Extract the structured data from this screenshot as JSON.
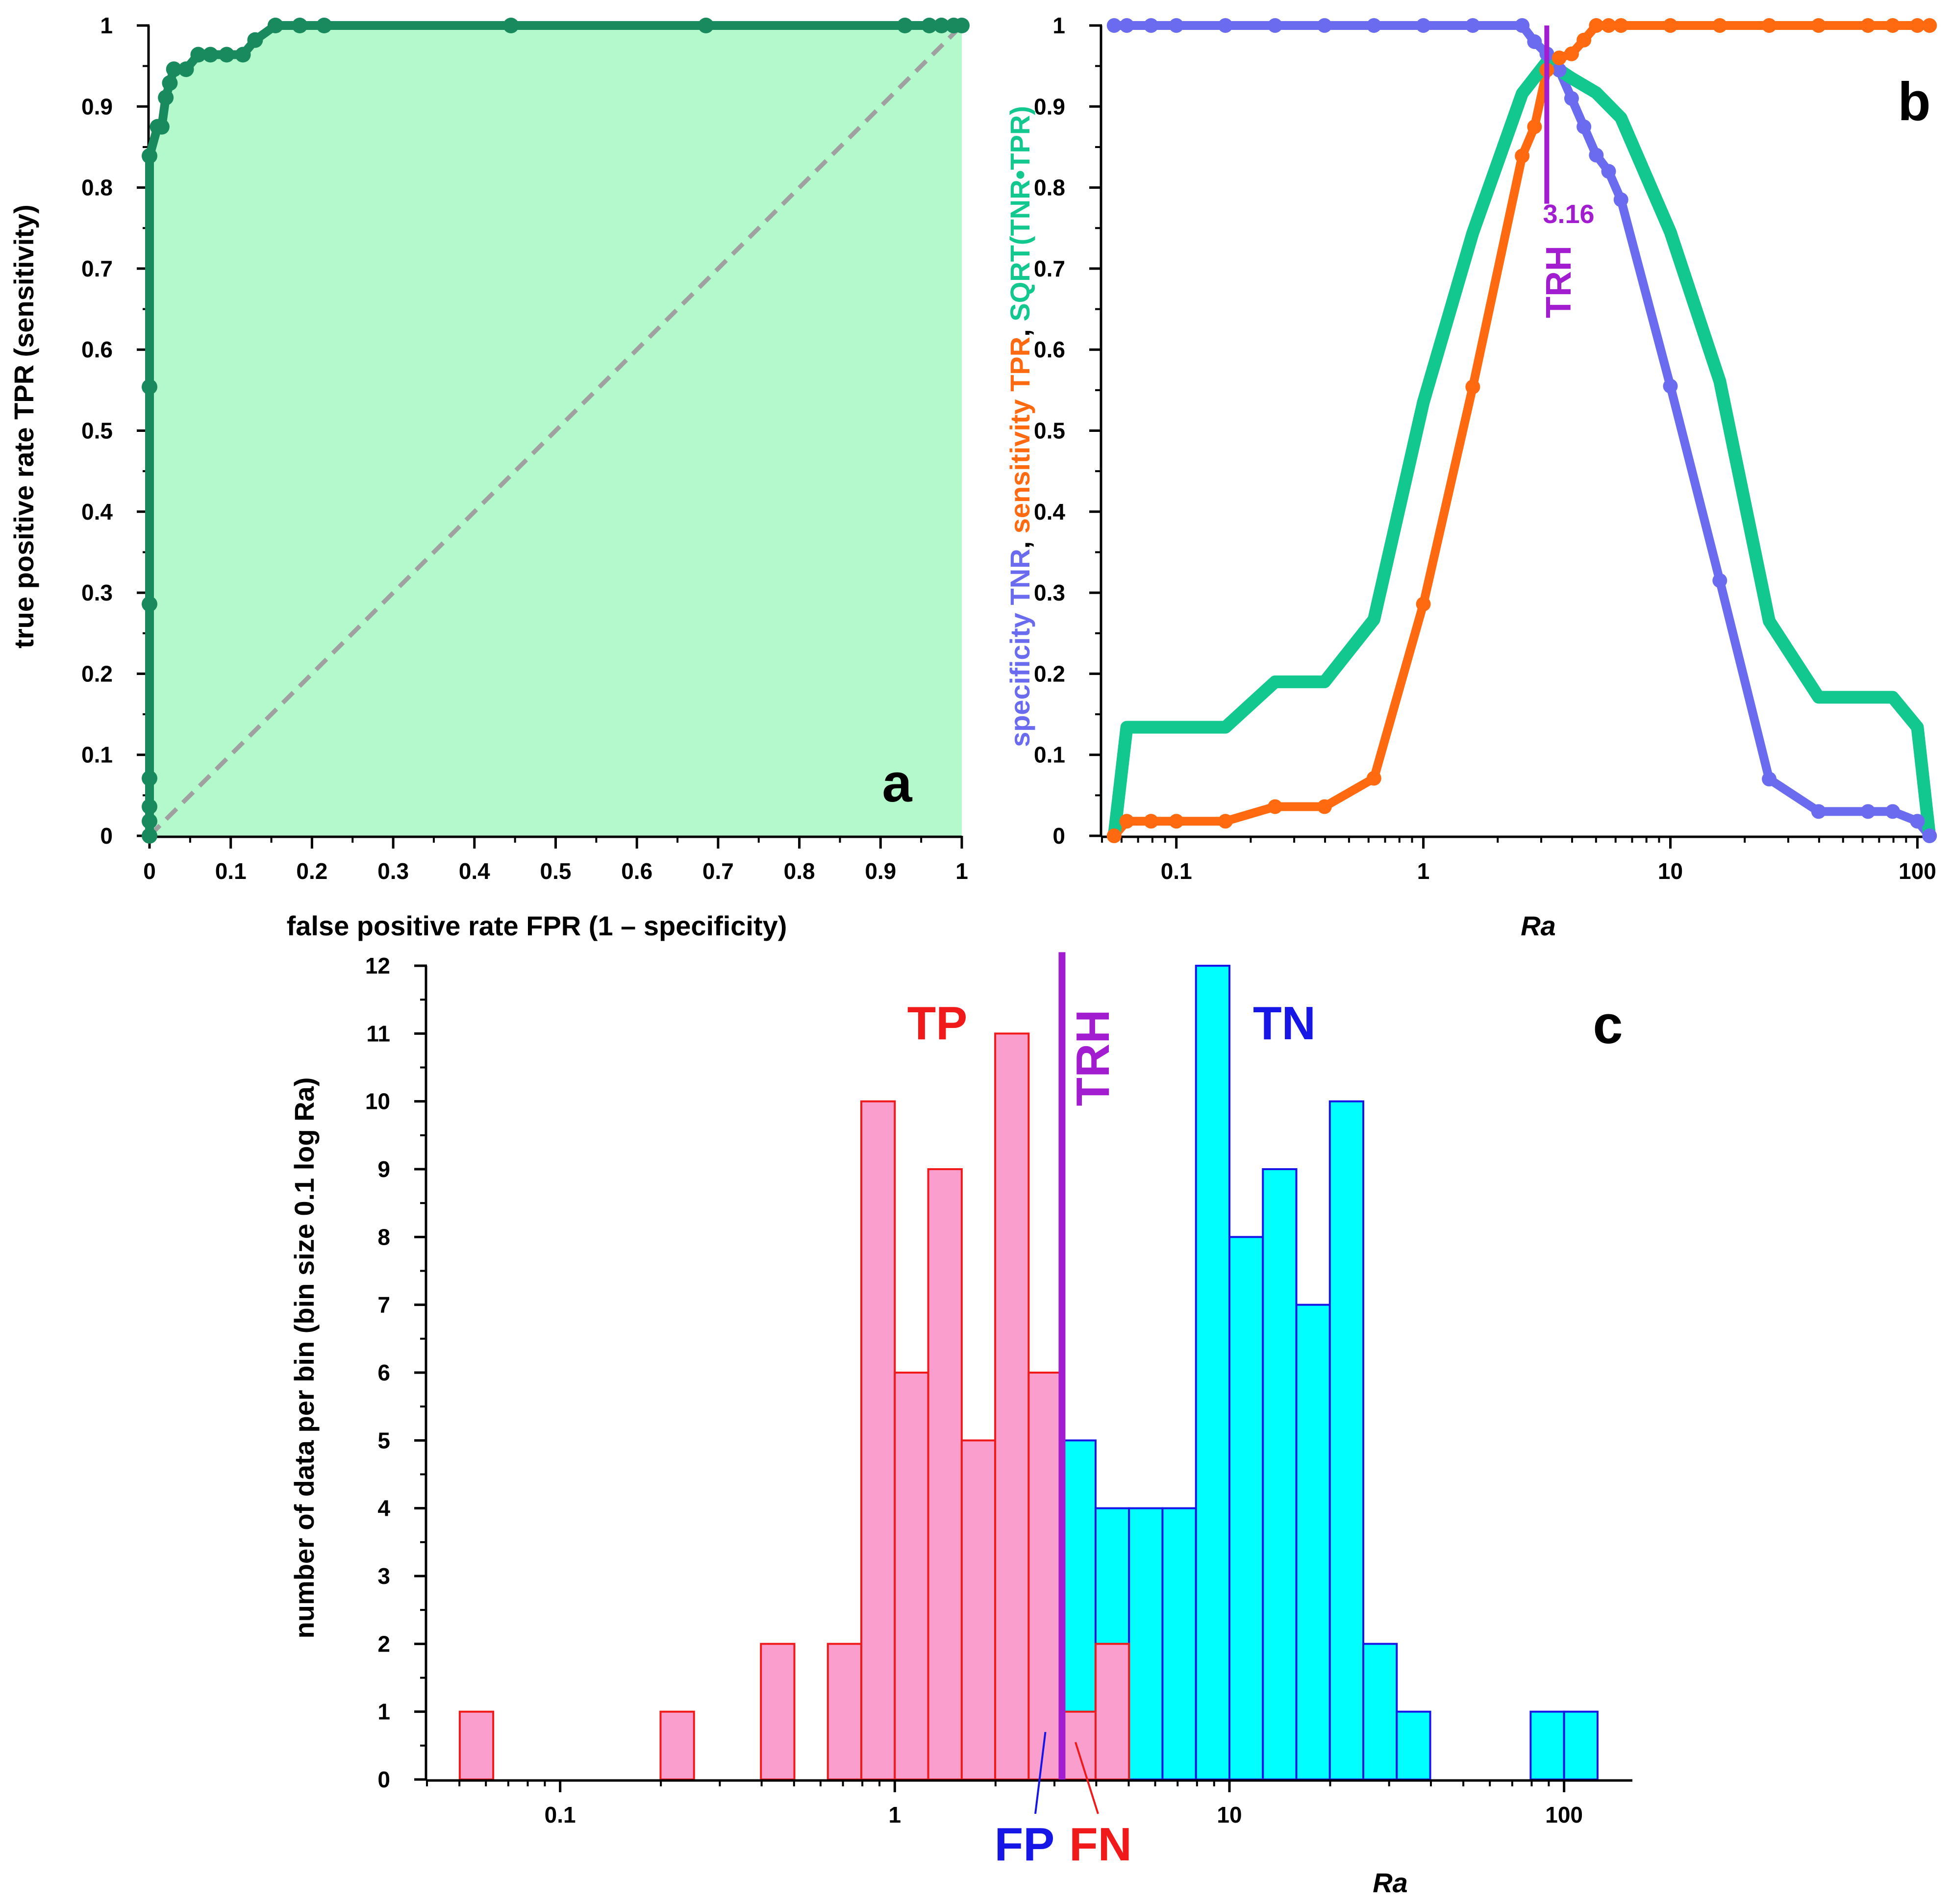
{
  "colors": {
    "roc_line": "#188a5e",
    "roc_fill": "#b3f9cb",
    "tnr": "#6b6bf0",
    "tpr": "#ff6a10",
    "sqrt": "#12c88e",
    "trh": "#a21cd0",
    "tp_fill": "#fa9fcd",
    "tp_edge": "#f01a1a",
    "tn_fill": "#00ffff",
    "tn_edge": "#1616e6",
    "fp_label": "#1616e6",
    "fn_label": "#f01a1a"
  },
  "chart_data": [
    {
      "id": "a",
      "type": "line",
      "panel_label": "a",
      "xlabel": "false positive rate FPR (1 – specificity)",
      "ylabel": "true positive rate TPR (sensitivity)",
      "xlim": [
        0,
        1
      ],
      "ylim": [
        0,
        1
      ],
      "xticks": [
        "0",
        "0.1",
        "0.2",
        "0.3",
        "0.4",
        "0.5",
        "0.6",
        "0.7",
        "0.8",
        "0.9",
        "1"
      ],
      "yticks": [
        "0",
        "0.1",
        "0.2",
        "0.3",
        "0.4",
        "0.5",
        "0.6",
        "0.7",
        "0.8",
        "0.9",
        "1"
      ],
      "diagonal": [
        [
          0,
          0
        ],
        [
          1,
          1
        ]
      ],
      "roc": [
        [
          0,
          0
        ],
        [
          0,
          0.018
        ],
        [
          0,
          0.036
        ],
        [
          0,
          0.071
        ],
        [
          0,
          0.286
        ],
        [
          0,
          0.554
        ],
        [
          0,
          0.839
        ],
        [
          0.01,
          0.875
        ],
        [
          0.015,
          0.875
        ],
        [
          0.02,
          0.911
        ],
        [
          0.025,
          0.929
        ],
        [
          0.03,
          0.946
        ],
        [
          0.045,
          0.946
        ],
        [
          0.06,
          0.964
        ],
        [
          0.075,
          0.964
        ],
        [
          0.095,
          0.964
        ],
        [
          0.115,
          0.964
        ],
        [
          0.13,
          0.982
        ],
        [
          0.155,
          1
        ],
        [
          0.185,
          1
        ],
        [
          0.215,
          1
        ],
        [
          0.445,
          1
        ],
        [
          0.685,
          1
        ],
        [
          0.93,
          1
        ],
        [
          0.96,
          1
        ],
        [
          0.975,
          1
        ],
        [
          0.99,
          1
        ],
        [
          1,
          1
        ]
      ]
    },
    {
      "id": "b",
      "type": "line",
      "panel_label": "b",
      "xlabel": "Ra",
      "ylabel_parts": [
        "specificity TNR",
        ", ",
        "sensitivity TPR",
        ", ",
        "SQRT(TNR•TPR)"
      ],
      "xscale": "log",
      "xlim": [
        0.05,
        115
      ],
      "ylim": [
        0,
        1
      ],
      "xticks": [
        "0.1",
        "1",
        "10",
        "100"
      ],
      "yticks": [
        "0",
        "0.1",
        "0.2",
        "0.3",
        "0.4",
        "0.5",
        "0.6",
        "0.7",
        "0.8",
        "0.9",
        "1"
      ],
      "threshold": {
        "label": "TRH",
        "value": 3.16,
        "value_label": "3.16"
      },
      "series": [
        {
          "name": "TNR",
          "points": [
            [
              0.056,
              1
            ],
            [
              0.063,
              1
            ],
            [
              0.079,
              1
            ],
            [
              0.1,
              1
            ],
            [
              0.158,
              1
            ],
            [
              0.251,
              1
            ],
            [
              0.398,
              1
            ],
            [
              0.631,
              1
            ],
            [
              1,
              1
            ],
            [
              1.585,
              1
            ],
            [
              2.512,
              1
            ],
            [
              2.818,
              0.98
            ],
            [
              3.162,
              0.965
            ],
            [
              3.548,
              0.945
            ],
            [
              3.981,
              0.91
            ],
            [
              4.467,
              0.875
            ],
            [
              5.012,
              0.84
            ],
            [
              5.623,
              0.82
            ],
            [
              6.31,
              0.785
            ],
            [
              10,
              0.555
            ],
            [
              15.85,
              0.315
            ],
            [
              25.12,
              0.07
            ],
            [
              39.81,
              0.03
            ],
            [
              63.1,
              0.03
            ],
            [
              79.43,
              0.03
            ],
            [
              100,
              0.018
            ],
            [
              112,
              0
            ]
          ]
        },
        {
          "name": "TPR",
          "points": [
            [
              0.056,
              0
            ],
            [
              0.063,
              0.018
            ],
            [
              0.079,
              0.018
            ],
            [
              0.1,
              0.018
            ],
            [
              0.158,
              0.018
            ],
            [
              0.251,
              0.036
            ],
            [
              0.398,
              0.036
            ],
            [
              0.631,
              0.071
            ],
            [
              1,
              0.286
            ],
            [
              1.585,
              0.554
            ],
            [
              2.512,
              0.839
            ],
            [
              2.818,
              0.875
            ],
            [
              3.162,
              0.945
            ],
            [
              3.548,
              0.96
            ],
            [
              3.981,
              0.965
            ],
            [
              4.467,
              0.982
            ],
            [
              5.012,
              1
            ],
            [
              5.623,
              1
            ],
            [
              6.31,
              1
            ],
            [
              10,
              1
            ],
            [
              15.85,
              1
            ],
            [
              25.12,
              1
            ],
            [
              39.81,
              1
            ],
            [
              63.1,
              1
            ],
            [
              79.43,
              1
            ],
            [
              100,
              1
            ],
            [
              112,
              1
            ]
          ]
        },
        {
          "name": "SQRT(TNR•TPR)",
          "points": [
            [
              0.056,
              0
            ],
            [
              0.063,
              0.134
            ],
            [
              0.079,
              0.134
            ],
            [
              0.1,
              0.134
            ],
            [
              0.158,
              0.134
            ],
            [
              0.251,
              0.19
            ],
            [
              0.398,
              0.19
            ],
            [
              0.631,
              0.267
            ],
            [
              1,
              0.535
            ],
            [
              1.585,
              0.744
            ],
            [
              2.512,
              0.916
            ],
            [
              3.162,
              0.955
            ],
            [
              3.981,
              0.935
            ],
            [
              5.012,
              0.917
            ],
            [
              6.31,
              0.886
            ],
            [
              10,
              0.745
            ],
            [
              15.85,
              0.561
            ],
            [
              25.12,
              0.265
            ],
            [
              39.81,
              0.171
            ],
            [
              63.1,
              0.171
            ],
            [
              79.43,
              0.171
            ],
            [
              100,
              0.134
            ],
            [
              112,
              0
            ]
          ]
        }
      ]
    },
    {
      "id": "c",
      "type": "bar",
      "panel_label": "c",
      "xlabel": "Ra",
      "ylabel": "number of data per bin (bin size 0.1 log Ra)",
      "xscale": "log",
      "xlim": [
        0.04,
        160
      ],
      "ylim": [
        0,
        12
      ],
      "xticks": [
        "0.1",
        "1",
        "10",
        "100"
      ],
      "yticks": [
        "0",
        "1",
        "2",
        "3",
        "4",
        "5",
        "6",
        "7",
        "8",
        "9",
        "10",
        "11",
        "12"
      ],
      "threshold": {
        "label": "TRH",
        "value": 3.16
      },
      "annotations": {
        "tp": "TP",
        "tn": "TN",
        "fp": "FP",
        "fn": "FN"
      },
      "series": [
        {
          "name": "TP",
          "bins": [
            [
              -1.3,
              -1.2,
              1
            ],
            [
              -0.7,
              -0.6,
              1
            ],
            [
              -0.4,
              -0.3,
              2
            ],
            [
              -0.2,
              -0.1,
              2
            ],
            [
              -0.1,
              0.0,
              10
            ],
            [
              0.0,
              0.1,
              6
            ],
            [
              0.1,
              0.2,
              9
            ],
            [
              0.2,
              0.3,
              5
            ],
            [
              0.3,
              0.4,
              11
            ],
            [
              0.4,
              0.5,
              6
            ],
            [
              0.5,
              0.6,
              1
            ],
            [
              0.6,
              0.7,
              2
            ]
          ]
        },
        {
          "name": "TN",
          "bins": [
            [
              0.4,
              0.5,
              2
            ],
            [
              0.5,
              0.6,
              5
            ],
            [
              0.6,
              0.7,
              4
            ],
            [
              0.7,
              0.8,
              4
            ],
            [
              0.8,
              0.9,
              4
            ],
            [
              0.9,
              1.0,
              12
            ],
            [
              1.0,
              1.1,
              8
            ],
            [
              1.1,
              1.2,
              9
            ],
            [
              1.2,
              1.3,
              7
            ],
            [
              1.3,
              1.4,
              10
            ],
            [
              1.4,
              1.5,
              2
            ],
            [
              1.5,
              1.6,
              1
            ],
            [
              1.9,
              2.0,
              1
            ],
            [
              2.0,
              2.1,
              1
            ]
          ]
        }
      ]
    }
  ]
}
